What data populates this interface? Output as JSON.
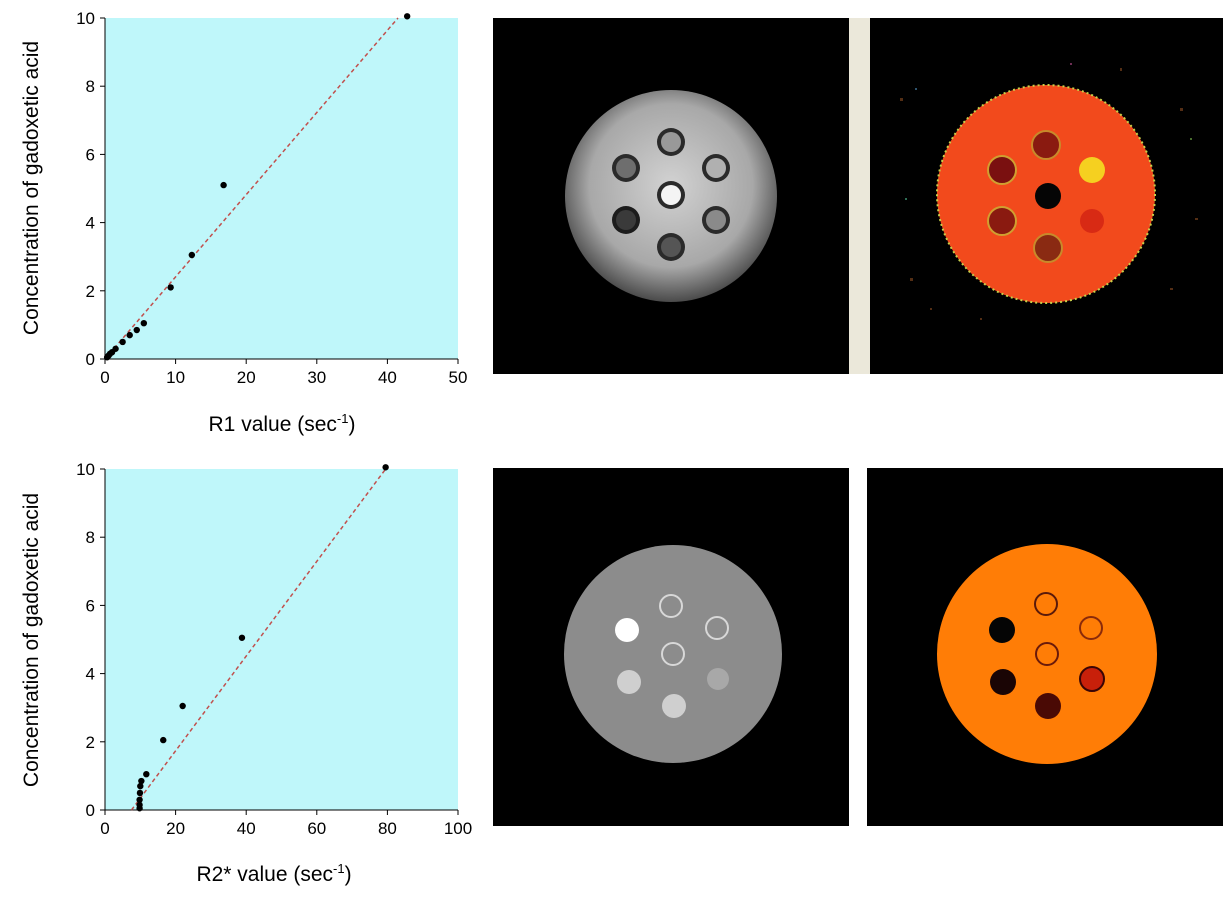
{
  "chart_data": [
    {
      "type": "scatter",
      "title": "",
      "xlabel": "R1 value (sec",
      "xlabel_sup": "-1",
      "xlabel_close": ")",
      "ylabel": "Concentration of gadoxetic acid",
      "xlim": [
        0,
        50
      ],
      "ylim": [
        0,
        10
      ],
      "xticks": [
        "0",
        "10",
        "20",
        "30",
        "40",
        "50"
      ],
      "yticks": [
        "0",
        "2",
        "4",
        "6",
        "8",
        "10"
      ],
      "background": "#bff7fa",
      "point_color": "#000000",
      "fit_color": "#c0504d",
      "fit_line": {
        "x": [
          0,
          41.5
        ],
        "y": [
          0,
          10
        ]
      },
      "points": [
        {
          "x": 0.3,
          "y": 0.05
        },
        {
          "x": 0.5,
          "y": 0.1
        },
        {
          "x": 0.7,
          "y": 0.15
        },
        {
          "x": 1.0,
          "y": 0.2
        },
        {
          "x": 1.5,
          "y": 0.3
        },
        {
          "x": 2.5,
          "y": 0.5
        },
        {
          "x": 3.5,
          "y": 0.7
        },
        {
          "x": 4.5,
          "y": 0.85
        },
        {
          "x": 5.5,
          "y": 1.05
        },
        {
          "x": 9.3,
          "y": 2.1
        },
        {
          "x": 12.3,
          "y": 3.05
        },
        {
          "x": 16.8,
          "y": 5.1
        },
        {
          "x": 42.8,
          "y": 10.05
        }
      ]
    },
    {
      "type": "scatter",
      "title": "",
      "xlabel": "R2* value (sec",
      "xlabel_sup": "-1",
      "xlabel_close": ")",
      "ylabel": "Concentration of gadoxetic acid",
      "xlim": [
        0,
        100
      ],
      "ylim": [
        0,
        10
      ],
      "xticks": [
        "0",
        "20",
        "40",
        "60",
        "80",
        "100"
      ],
      "yticks": [
        "0",
        "2",
        "4",
        "6",
        "8",
        "10"
      ],
      "background": "#bff7fa",
      "point_color": "#000000",
      "fit_color": "#c0504d",
      "fit_line": {
        "x": [
          7.5,
          79.5
        ],
        "y": [
          0,
          10
        ]
      },
      "points": [
        {
          "x": 9.8,
          "y": 0.05
        },
        {
          "x": 9.8,
          "y": 0.15
        },
        {
          "x": 9.8,
          "y": 0.3
        },
        {
          "x": 9.9,
          "y": 0.5
        },
        {
          "x": 10.0,
          "y": 0.7
        },
        {
          "x": 10.3,
          "y": 0.85
        },
        {
          "x": 11.7,
          "y": 1.05
        },
        {
          "x": 16.5,
          "y": 2.05
        },
        {
          "x": 22.0,
          "y": 3.05
        },
        {
          "x": 38.8,
          "y": 5.05
        },
        {
          "x": 79.5,
          "y": 10.05
        }
      ]
    }
  ],
  "images": {
    "top_left": "grayscale MR phantom image",
    "top_right": "R1 color map phantom image",
    "bottom_left": "R2* grayscale map phantom image",
    "bottom_right": "R2* color map phantom image"
  },
  "colors": {
    "separator": "#ebe8da",
    "r1_map_base": "#f24a1c",
    "r2_map_base": "#ff7d06",
    "r2_gray_base": "#8c8c8c"
  }
}
